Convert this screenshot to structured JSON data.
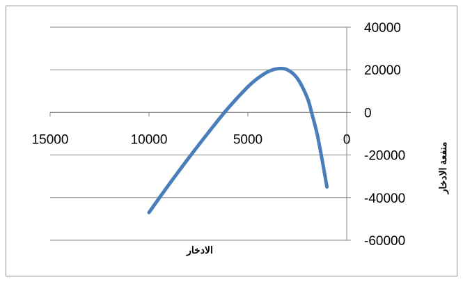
{
  "chart_data": {
    "type": "line",
    "title": "",
    "xlabel": "الادخار",
    "ylabel": "منفعة الادخار",
    "xlim": [
      15000,
      0
    ],
    "ylim": [
      -60000,
      40000
    ],
    "x_reversed": true,
    "y_axis_position": "right",
    "x_axis_crosses_at": 0,
    "grid": "horizontal",
    "legend": "none",
    "x_ticks": [
      15000,
      10000,
      5000,
      0
    ],
    "y_ticks": [
      40000,
      20000,
      0,
      -20000,
      -40000,
      -60000
    ],
    "x_tick_labels": [
      "15000",
      "10000",
      "5000",
      "0"
    ],
    "y_tick_labels": [
      "40000",
      "20000",
      "0",
      "-20000",
      "-40000",
      "-60000"
    ],
    "series": [
      {
        "color": "#4a7ebb",
        "smooth": true,
        "x": [
          10000,
          9000,
          8000,
          7000,
          6000,
          5000,
          4500,
          4000,
          3500,
          3000,
          2500,
          2000,
          1750,
          1500,
          1250,
          1000
        ],
        "y": [
          -47000,
          -34000,
          -21500,
          -9500,
          2000,
          12000,
          16000,
          19000,
          20500,
          20000,
          16000,
          7000,
          -1000,
          -10000,
          -22000,
          -35000
        ]
      }
    ]
  }
}
